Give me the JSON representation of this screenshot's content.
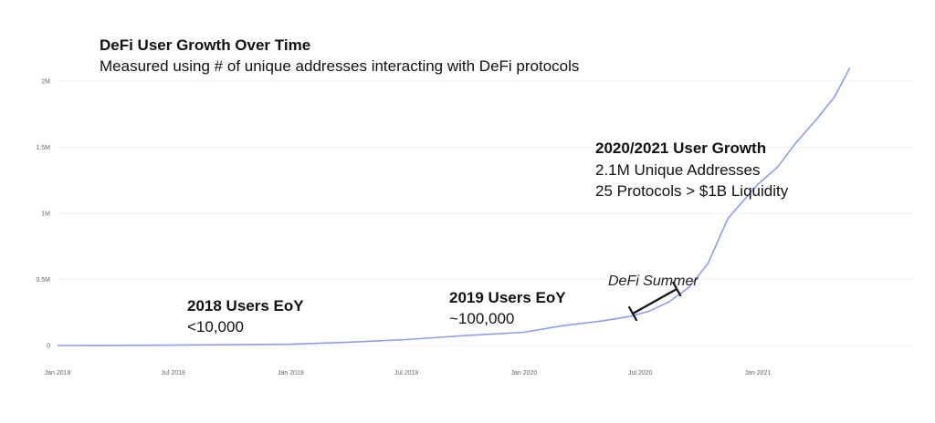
{
  "chart_data": {
    "type": "line",
    "title": "DeFi User Growth Over Time",
    "subtitle": "Measured using # of unique addresses interacting with DeFi protocols",
    "xlabel": "",
    "ylabel": "",
    "ylim": [
      0,
      2000000
    ],
    "y_ticks": [
      {
        "value": 0,
        "label": "0"
      },
      {
        "value": 500000,
        "label": "0.5M"
      },
      {
        "value": 1000000,
        "label": "1M"
      },
      {
        "value": 1500000,
        "label": "1.5M"
      },
      {
        "value": 2000000,
        "label": "2M"
      }
    ],
    "x_ticks": [
      {
        "date": "2018-01-01",
        "label": "Jan 2018"
      },
      {
        "date": "2018-07-01",
        "label": "Jul 2018"
      },
      {
        "date": "2019-01-01",
        "label": "Jan 2019"
      },
      {
        "date": "2019-07-01",
        "label": "Jul 2019"
      },
      {
        "date": "2020-01-01",
        "label": "Jan 2020"
      },
      {
        "date": "2020-07-01",
        "label": "Jul 2020"
      },
      {
        "date": "2021-01-01",
        "label": "Jan 2021"
      }
    ],
    "xlim": [
      "2018-01-01",
      "2021-09-01"
    ],
    "grid": true,
    "line_color": "#8c9cf0",
    "series": [
      {
        "points": [
          {
            "date": "2018-01-01",
            "value": 0
          },
          {
            "date": "2018-04-01",
            "value": 1000
          },
          {
            "date": "2018-07-01",
            "value": 3000
          },
          {
            "date": "2018-10-01",
            "value": 6000
          },
          {
            "date": "2019-01-01",
            "value": 10000
          },
          {
            "date": "2019-04-01",
            "value": 25000
          },
          {
            "date": "2019-07-01",
            "value": 45000
          },
          {
            "date": "2019-10-01",
            "value": 75000
          },
          {
            "date": "2020-01-01",
            "value": 100000
          },
          {
            "date": "2020-03-01",
            "value": 150000
          },
          {
            "date": "2020-05-01",
            "value": 185000
          },
          {
            "date": "2020-06-15",
            "value": 220000
          },
          {
            "date": "2020-07-15",
            "value": 260000
          },
          {
            "date": "2020-08-15",
            "value": 330000
          },
          {
            "date": "2020-09-15",
            "value": 440000
          },
          {
            "date": "2020-10-15",
            "value": 620000
          },
          {
            "date": "2020-11-15",
            "value": 960000
          },
          {
            "date": "2020-12-01",
            "value": 1050000
          },
          {
            "date": "2021-01-01",
            "value": 1220000
          },
          {
            "date": "2021-02-01",
            "value": 1350000
          },
          {
            "date": "2021-03-01",
            "value": 1530000
          },
          {
            "date": "2021-04-01",
            "value": 1700000
          },
          {
            "date": "2021-05-01",
            "value": 1880000
          },
          {
            "date": "2021-05-25",
            "value": 2100000
          }
        ]
      }
    ],
    "annotations": [
      {
        "title": "2018 Users EoY",
        "lines": [
          "<10,000"
        ]
      },
      {
        "title": "2019 Users EoY",
        "lines": [
          "~100,000"
        ]
      },
      {
        "title": "2020/2021 User Growth",
        "lines": [
          "2.1M Unique Addresses",
          "25 Protocols > $1B Liquidity"
        ]
      },
      {
        "label": "DeFi Summer",
        "range": [
          "2020-06-15",
          "2020-08-20"
        ]
      }
    ]
  }
}
